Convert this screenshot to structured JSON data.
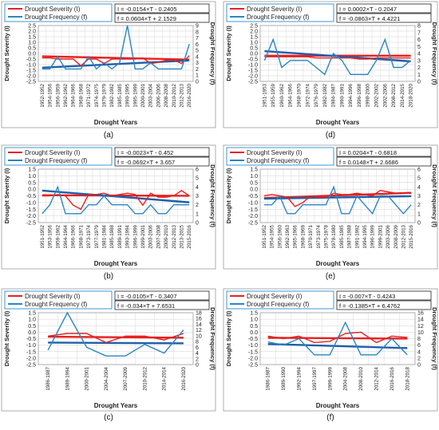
{
  "legend": {
    "severity": "Drought  Severity (I)",
    "frequency": "Drought  Frequency (f)"
  },
  "colors": {
    "severity": "#e8201e",
    "frequency": "#2a86c4",
    "severity_trend": "#e8201e",
    "frequency_trend": "#1f5fa8",
    "grid": "#d0d0d0",
    "border": "#9a9a9a"
  },
  "chart_data": [
    {
      "panel_label": "(a)",
      "type": "line",
      "xlabel": "Drought Years",
      "ylabel": "Drought Severity (I)",
      "y2label": "Drought Frequency (f)",
      "ylim": [
        -2.5,
        2.5
      ],
      "y_ticks": [
        "2.5",
        "2.0",
        "1.5",
        "1.0",
        "0.5",
        "0.0",
        "-0.5",
        "-1.0",
        "-1.5",
        "-2.0",
        "-2.5"
      ],
      "y2lim": [
        0,
        9
      ],
      "y2_ticks": [
        "9",
        "8",
        "7",
        "6",
        "5",
        "4",
        "3",
        "2",
        "1",
        "0"
      ],
      "categories": [
        "1952-1952",
        "1954-1956",
        "1956-1959",
        "1962-1962",
        "1964-1966",
        "1968-1968",
        "1971-1972",
        "1974-1975",
        "1979-1979",
        "1982-1982",
        "1985-1985",
        "1990-1995",
        "1995-1999",
        "2000-2001",
        "2003-2004",
        "2006-2006",
        "2008-2008",
        "2010-2012",
        "2012-2013",
        "2016-2020"
      ],
      "severity": [
        -0.4,
        -0.4,
        -0.5,
        -0.5,
        -0.5,
        -1.1,
        -0.5,
        -0.5,
        -0.9,
        -0.5,
        -0.5,
        -0.5,
        -0.5,
        -0.4,
        -0.9,
        -0.8,
        -0.6,
        -0.6,
        -0.9,
        -0.2
      ],
      "frequency": [
        2,
        2,
        4,
        2,
        2,
        2,
        4,
        2,
        3,
        2,
        3,
        9,
        2,
        2,
        3,
        2,
        2,
        2,
        2,
        6
      ],
      "severity_equation": "I = -0.0154×T - 0.2405",
      "frequency_equation": "f = 0.0604×T + 2.1529",
      "severity_trend": {
        "slope": -0.0154,
        "intercept": -0.2405
      },
      "frequency_trend": {
        "slope": 0.0604,
        "intercept": 2.1529
      }
    },
    {
      "panel_label": "(d)",
      "type": "line",
      "xlabel": "Drought Years",
      "ylabel": "Drought Severity (I)",
      "y2label": "Drought Frequency (f)",
      "ylim": [
        -2.5,
        2.5
      ],
      "y_ticks": [
        "2.5",
        "2.0",
        "1.5",
        "1.0",
        "0.5",
        "0.0",
        "-0.5",
        "-1.0",
        "-1.5",
        "-2.0",
        "-2.5"
      ],
      "y2lim": [
        0,
        8
      ],
      "y2_ticks": [
        "8",
        "7",
        "6",
        "5",
        "4",
        "3",
        "2",
        "1",
        "0"
      ],
      "categories": [
        "1951-1953",
        "1955-1959",
        "1960-1962",
        "1964-1966",
        "1968-1970",
        "1972-1974",
        "1976-1979",
        "1982-1982",
        "1984-1987",
        "1990-1991",
        "1994-1996",
        "1996-1998",
        "1998-2000",
        "2002-2002",
        "2002-2006",
        "2008-2012",
        "2014-2015",
        "2018-2020"
      ],
      "severity": [
        -0.3,
        -0.3,
        -0.3,
        -0.3,
        -0.3,
        -0.3,
        -0.4,
        -0.4,
        -0.4,
        -0.4,
        -0.4,
        -0.5,
        -0.5,
        -0.4,
        -0.4,
        -0.4,
        -0.4,
        -0.4
      ],
      "frequency": [
        3,
        6,
        2,
        3,
        3,
        3,
        2,
        1,
        4,
        3,
        1,
        1,
        1,
        3,
        6,
        2,
        2,
        3
      ],
      "severity_equation": "I = 0.0002×T - 0.2047",
      "frequency_equation": "f = -0.0863×T + 4.4221",
      "severity_trend": {
        "slope": 0.0002,
        "intercept": -0.2047
      },
      "frequency_trend": {
        "slope": -0.0863,
        "intercept": 4.4221
      }
    },
    {
      "panel_label": "(b)",
      "type": "line",
      "xlabel": "Drought Years",
      "ylabel": "Drought Severity (I)",
      "y2label": "Drought Frequency (f)",
      "ylim": [
        -2.5,
        1.5
      ],
      "y_ticks": [
        "1.5",
        "1.0",
        "0.5",
        "0.0",
        "-0.5",
        "-1.0",
        "-1.5",
        "-2.0",
        "-2.5"
      ],
      "y2lim": [
        0,
        6
      ],
      "y2_ticks": [
        "6",
        "5",
        "4",
        "3",
        "2",
        "1",
        "0"
      ],
      "categories": [
        "1951-1952",
        "1953-1956",
        "1959-1962",
        "1964-1964",
        "1966-1966",
        "1968-1971",
        "1973-1974",
        "1977-1979",
        "1981-1984",
        "1985-1988",
        "1989-1991",
        "1993-1994",
        "1996-1999",
        "1999-2001",
        "2003-2006",
        "2007-2008",
        "2009-2010",
        "2012-2013",
        "2013-2015",
        "2015-2016"
      ],
      "severity": [
        -0.5,
        -0.5,
        -0.4,
        -0.5,
        -1.2,
        -1.5,
        -0.4,
        -0.4,
        -0.3,
        -0.5,
        -0.4,
        -0.3,
        -0.4,
        -1.2,
        -0.3,
        -0.6,
        -0.6,
        -0.5,
        -0.1,
        -0.5
      ],
      "frequency": [
        1,
        2,
        4,
        1,
        1,
        1,
        2,
        2,
        3,
        2,
        2,
        2,
        1,
        1,
        2,
        1,
        1,
        2,
        2,
        2
      ],
      "severity_equation": "I = -0.0023×T - 0.452",
      "frequency_equation": "f = -0.0692×T + 3.657",
      "severity_trend": {
        "slope": -0.0023,
        "intercept": -0.452
      },
      "frequency_trend": {
        "slope": -0.0692,
        "intercept": 3.657
      }
    },
    {
      "panel_label": "(e)",
      "type": "line",
      "xlabel": "Drought Years",
      "ylabel": "Drought Severity (I)",
      "y2label": "Drought Frequency (f)",
      "ylim": [
        -2.5,
        1.5
      ],
      "y_ticks": [
        "1.5",
        "1.0",
        "0.5",
        "0.0",
        "-0.5",
        "-1.0",
        "-1.5",
        "-2.0",
        "-2.5"
      ],
      "y2lim": [
        0,
        6
      ],
      "y2_ticks": [
        "6",
        "5",
        "4",
        "3",
        "2",
        "1",
        "0"
      ],
      "categories": [
        "1951-1952",
        "1954-1955",
        "1956-1960",
        "1962-1963",
        "1965-1966",
        "1968-1969",
        "1970-1971",
        "1973-1974",
        "1975-1978",
        "1978-1980",
        "1985-1985",
        "1987-1988",
        "1991-1992",
        "1994-1995",
        "1996-1999",
        "1999-2001",
        "2003-2006",
        "2008-2009",
        "2012-2013",
        "2015-2016"
      ],
      "severity": [
        -0.5,
        -0.4,
        -0.5,
        -0.6,
        -1.3,
        -1.0,
        -0.5,
        -0.6,
        -0.6,
        -0.3,
        -0.4,
        -0.4,
        -0.3,
        -0.4,
        -0.5,
        -0.1,
        -0.2,
        -0.3,
        -0.3,
        -0.3
      ],
      "frequency": [
        2,
        2,
        3,
        1,
        1,
        2,
        2,
        2,
        2,
        4,
        1,
        1,
        3,
        2,
        1,
        3,
        3,
        2,
        1,
        2
      ],
      "severity_equation": "I = 0.0204×T - 0.6818",
      "frequency_equation": "f = 0.0148×T + 2.6686",
      "severity_trend": {
        "slope": 0.0204,
        "intercept": -0.6818
      },
      "frequency_trend": {
        "slope": 0.0148,
        "intercept": 2.6686
      }
    },
    {
      "panel_label": "(c)",
      "type": "line",
      "xlabel": "Drought Years",
      "ylabel": "Drought Severity (I)",
      "y2label": "Drought Frequency (f)",
      "ylim": [
        -2.5,
        1.5
      ],
      "y_ticks": [
        "1.5",
        "1.0",
        "0.5",
        "0.0",
        "-0.5",
        "-1.0",
        "-1.5",
        "-2.0",
        "-2.5"
      ],
      "y2lim": [
        0,
        18
      ],
      "y2_ticks": [
        "18",
        "16",
        "14",
        "12",
        "10",
        "8",
        "6",
        "4",
        "2",
        "0"
      ],
      "categories": [
        "1986-1987",
        "1989-1994",
        "2000-2001",
        "2004-2004",
        "2007-2009",
        "2010-2012",
        "2014-2014",
        "2016-2020"
      ],
      "severity": [
        -0.3,
        -0.1,
        -0.1,
        -0.8,
        -0.3,
        -0.3,
        -0.6,
        -0.1
      ],
      "frequency": [
        5,
        18,
        6,
        3,
        3,
        7,
        4,
        12
      ],
      "severity_equation": "I = -0.0105×T - 0.3407",
      "frequency_equation": "f = -0.034×T + 7.6531",
      "severity_trend": {
        "slope": -0.0105,
        "intercept": -0.3407
      },
      "frequency_trend": {
        "slope": -0.034,
        "intercept": 7.6531
      }
    },
    {
      "panel_label": "(f)",
      "type": "line",
      "xlabel": "Drought Years",
      "ylabel": "Drought Severity (I)",
      "y2label": "Drought Frequency (f)",
      "ylim": [
        -2.5,
        1.5
      ],
      "y_ticks": [
        "1.5",
        "1.0",
        "0.5",
        "0.0",
        "-0.5",
        "-1.0",
        "-1.5",
        "-2.0",
        "-2.5"
      ],
      "y2lim": [
        0,
        16
      ],
      "y2_ticks": [
        "16",
        "14",
        "12",
        "10",
        "8",
        "6",
        "4",
        "2",
        "0"
      ],
      "categories": [
        "1986-1987",
        "1989-1990",
        "1992-1994",
        "1997-1997",
        "1999-1999",
        "2004-2008",
        "2008-2010",
        "2012-2014",
        "2016-2016",
        "2018-2018"
      ],
      "severity": [
        -0.3,
        -0.5,
        -0.3,
        -0.8,
        -0.7,
        -0.1,
        0.0,
        -0.8,
        -0.3,
        -0.4
      ],
      "frequency": [
        7,
        6,
        8,
        3,
        3,
        13,
        3,
        3,
        8,
        3
      ],
      "severity_equation": "I = -0.007×T - 0.4243",
      "frequency_equation": "f = -0.1385×T + 6.4762",
      "severity_trend": {
        "slope": -0.007,
        "intercept": -0.4243
      },
      "frequency_trend": {
        "slope": -0.1385,
        "intercept": 6.4762
      }
    }
  ]
}
